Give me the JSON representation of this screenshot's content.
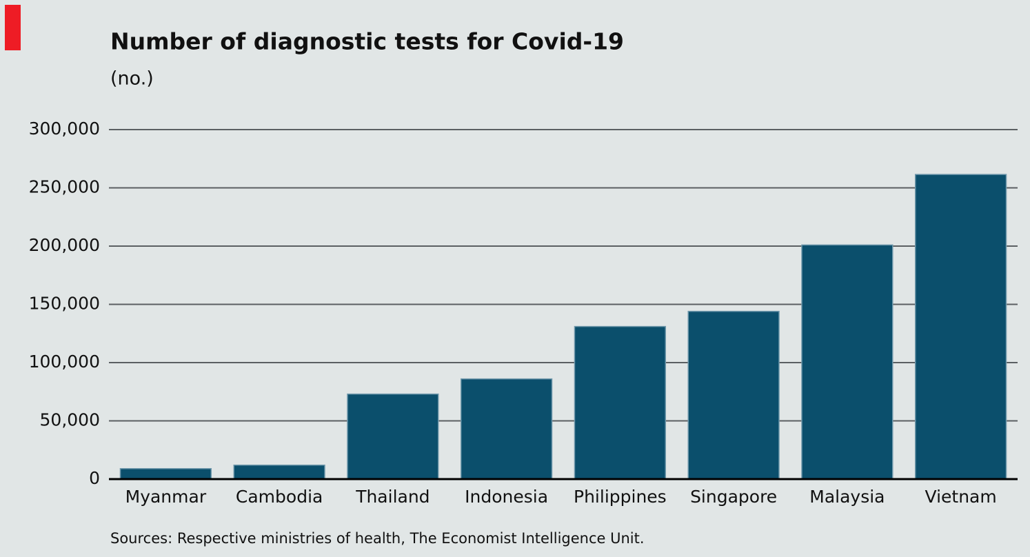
{
  "chart_data": {
    "type": "bar",
    "title": "Number of diagnostic tests for Covid-19",
    "subtitle": "(no.)",
    "categories": [
      "Myanmar",
      "Cambodia",
      "Thailand",
      "Indonesia",
      "Philippines",
      "Singapore",
      "Malaysia",
      "Vietnam"
    ],
    "values": [
      9000,
      12000,
      73000,
      86000,
      131000,
      144000,
      201000,
      261500
    ],
    "color": "#0b4f6c",
    "ylim": [
      0,
      300000
    ],
    "yticks": [
      0,
      {
        "value": 50000,
        "label": "50,000"
      },
      {
        "value": 100000,
        "label": "100,000"
      },
      {
        "value": 150000,
        "label": "150,000"
      },
      {
        "value": 200000,
        "label": "200,000"
      },
      {
        "value": 250000,
        "label": "250,000"
      },
      {
        "value": 300000,
        "label": "300,000"
      }
    ],
    "grid": true,
    "source": "Sources: Respective ministries of health, The Economist Intelligence Unit."
  }
}
